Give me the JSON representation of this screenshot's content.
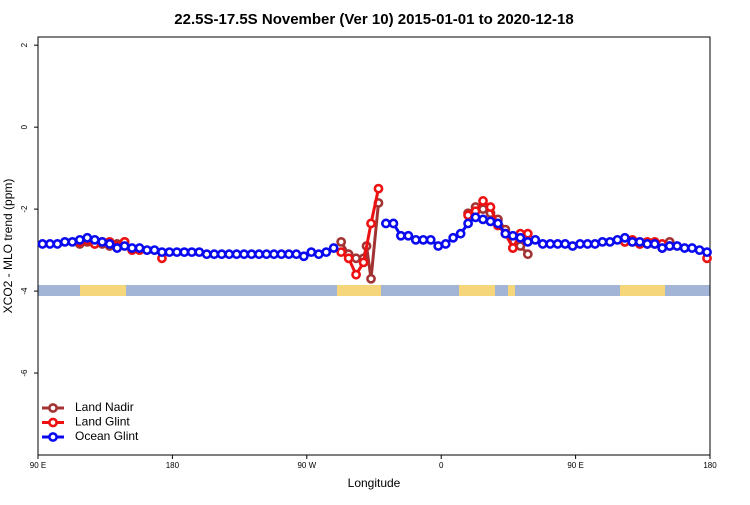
{
  "chart_data": {
    "type": "line",
    "title": "22.5S-17.5S November (Ver 10)   2015-01-01 to 2020-12-18",
    "x_label": "Longitude",
    "y_label": "XCO2 - MLO trend (ppm)",
    "xlim": [
      90,
      540
    ],
    "ylim": [
      -8,
      2.2
    ],
    "xticks": [
      {
        "value": 90,
        "label": "90 E"
      },
      180,
      {
        "value": 270,
        "label": "90 W"
      },
      {
        "value": 360,
        "label": "0"
      },
      {
        "value": 450,
        "label": "90 E"
      },
      {
        "value": 540,
        "label": "180"
      }
    ],
    "yticks": [
      -6,
      -4,
      -2,
      0,
      2
    ],
    "legend": "bottom-left",
    "series": [
      {
        "name": "Land Nadir",
        "color": "#a33333",
        "x": [
          118,
          123,
          128,
          133,
          138,
          143,
          148,
          153,
          293,
          298,
          303,
          308,
          310,
          313,
          318,
          323,
          378,
          383,
          388,
          393,
          398,
          403,
          408,
          413,
          418,
          423,
          483,
          488,
          493,
          498,
          503,
          508,
          513
        ],
        "values": [
          -2.85,
          -2.8,
          -2.85,
          -2.85,
          -2.9,
          -2.85,
          -2.8,
          null,
          -2.8,
          -3.1,
          -3.2,
          -3.2,
          -2.9,
          -3.7,
          -1.85,
          null,
          -2.1,
          -1.95,
          -2.0,
          -2.1,
          -2.25,
          -2.5,
          -2.95,
          -2.9,
          -3.1,
          null,
          -2.8,
          -2.8,
          -2.85,
          -2.85,
          -2.85,
          -2.95,
          -2.8
        ]
      },
      {
        "name": "Land Glint",
        "color": "#ee1111",
        "x": [
          118,
          123,
          128,
          133,
          138,
          143,
          148,
          153,
          158,
          163,
          173,
          178,
          293,
          298,
          303,
          308,
          313,
          318,
          323,
          378,
          383,
          388,
          393,
          398,
          403,
          408,
          413,
          418,
          423,
          483,
          488,
          493,
          498,
          503,
          508,
          513,
          518,
          538
        ],
        "values": [
          -2.8,
          -2.75,
          -2.85,
          -2.8,
          -2.8,
          -2.9,
          -2.8,
          -3.0,
          -3.0,
          null,
          -3.2,
          null,
          -3.05,
          -3.2,
          -3.6,
          -3.3,
          -2.35,
          -1.5,
          null,
          -2.15,
          -2.05,
          -1.8,
          -1.95,
          -2.4,
          -2.6,
          -2.95,
          -2.6,
          -2.6,
          null,
          -2.8,
          -2.75,
          -2.85,
          -2.8,
          -2.8,
          -2.85,
          -2.9,
          null,
          -3.2
        ]
      },
      {
        "name": "Ocean Glint",
        "color": "#0a0af0",
        "x": [
          93,
          98,
          103,
          108,
          113,
          118,
          123,
          128,
          133,
          138,
          143,
          148,
          153,
          158,
          163,
          168,
          173,
          178,
          183,
          188,
          193,
          198,
          203,
          208,
          213,
          218,
          223,
          228,
          233,
          238,
          243,
          248,
          253,
          258,
          263,
          268,
          273,
          278,
          283,
          288,
          293,
          298,
          303,
          308,
          313,
          318,
          323,
          328,
          333,
          338,
          343,
          348,
          353,
          358,
          363,
          368,
          373,
          378,
          383,
          388,
          393,
          398,
          403,
          408,
          413,
          418,
          423,
          428,
          433,
          438,
          443,
          448,
          453,
          458,
          463,
          468,
          473,
          478,
          483,
          488,
          493,
          498,
          503,
          508,
          513,
          518,
          523,
          528,
          533,
          538
        ],
        "values": [
          -2.85,
          -2.85,
          -2.85,
          -2.8,
          -2.8,
          -2.75,
          -2.7,
          -2.75,
          -2.8,
          -2.85,
          -2.95,
          -2.9,
          -2.95,
          -2.95,
          -3.0,
          -3.0,
          -3.05,
          -3.05,
          -3.05,
          -3.05,
          -3.05,
          -3.05,
          -3.1,
          -3.1,
          -3.1,
          -3.1,
          -3.1,
          -3.1,
          -3.1,
          -3.1,
          -3.1,
          -3.1,
          -3.1,
          -3.1,
          -3.1,
          -3.15,
          -3.05,
          -3.1,
          -3.05,
          -2.95,
          null,
          null,
          null,
          null,
          null,
          null,
          -2.35,
          -2.35,
          -2.65,
          -2.65,
          -2.75,
          -2.75,
          -2.75,
          -2.9,
          -2.85,
          -2.7,
          -2.6,
          -2.35,
          -2.2,
          -2.25,
          -2.3,
          -2.35,
          -2.6,
          -2.65,
          -2.7,
          -2.8,
          -2.75,
          -2.85,
          -2.85,
          -2.85,
          -2.85,
          -2.9,
          -2.85,
          -2.85,
          -2.85,
          -2.8,
          -2.8,
          -2.75,
          -2.7,
          -2.8,
          -2.8,
          -2.85,
          -2.85,
          -2.95,
          -2.9,
          -2.9,
          -2.95,
          -2.95,
          -3.0,
          -3.05
        ]
      }
    ]
  }
}
